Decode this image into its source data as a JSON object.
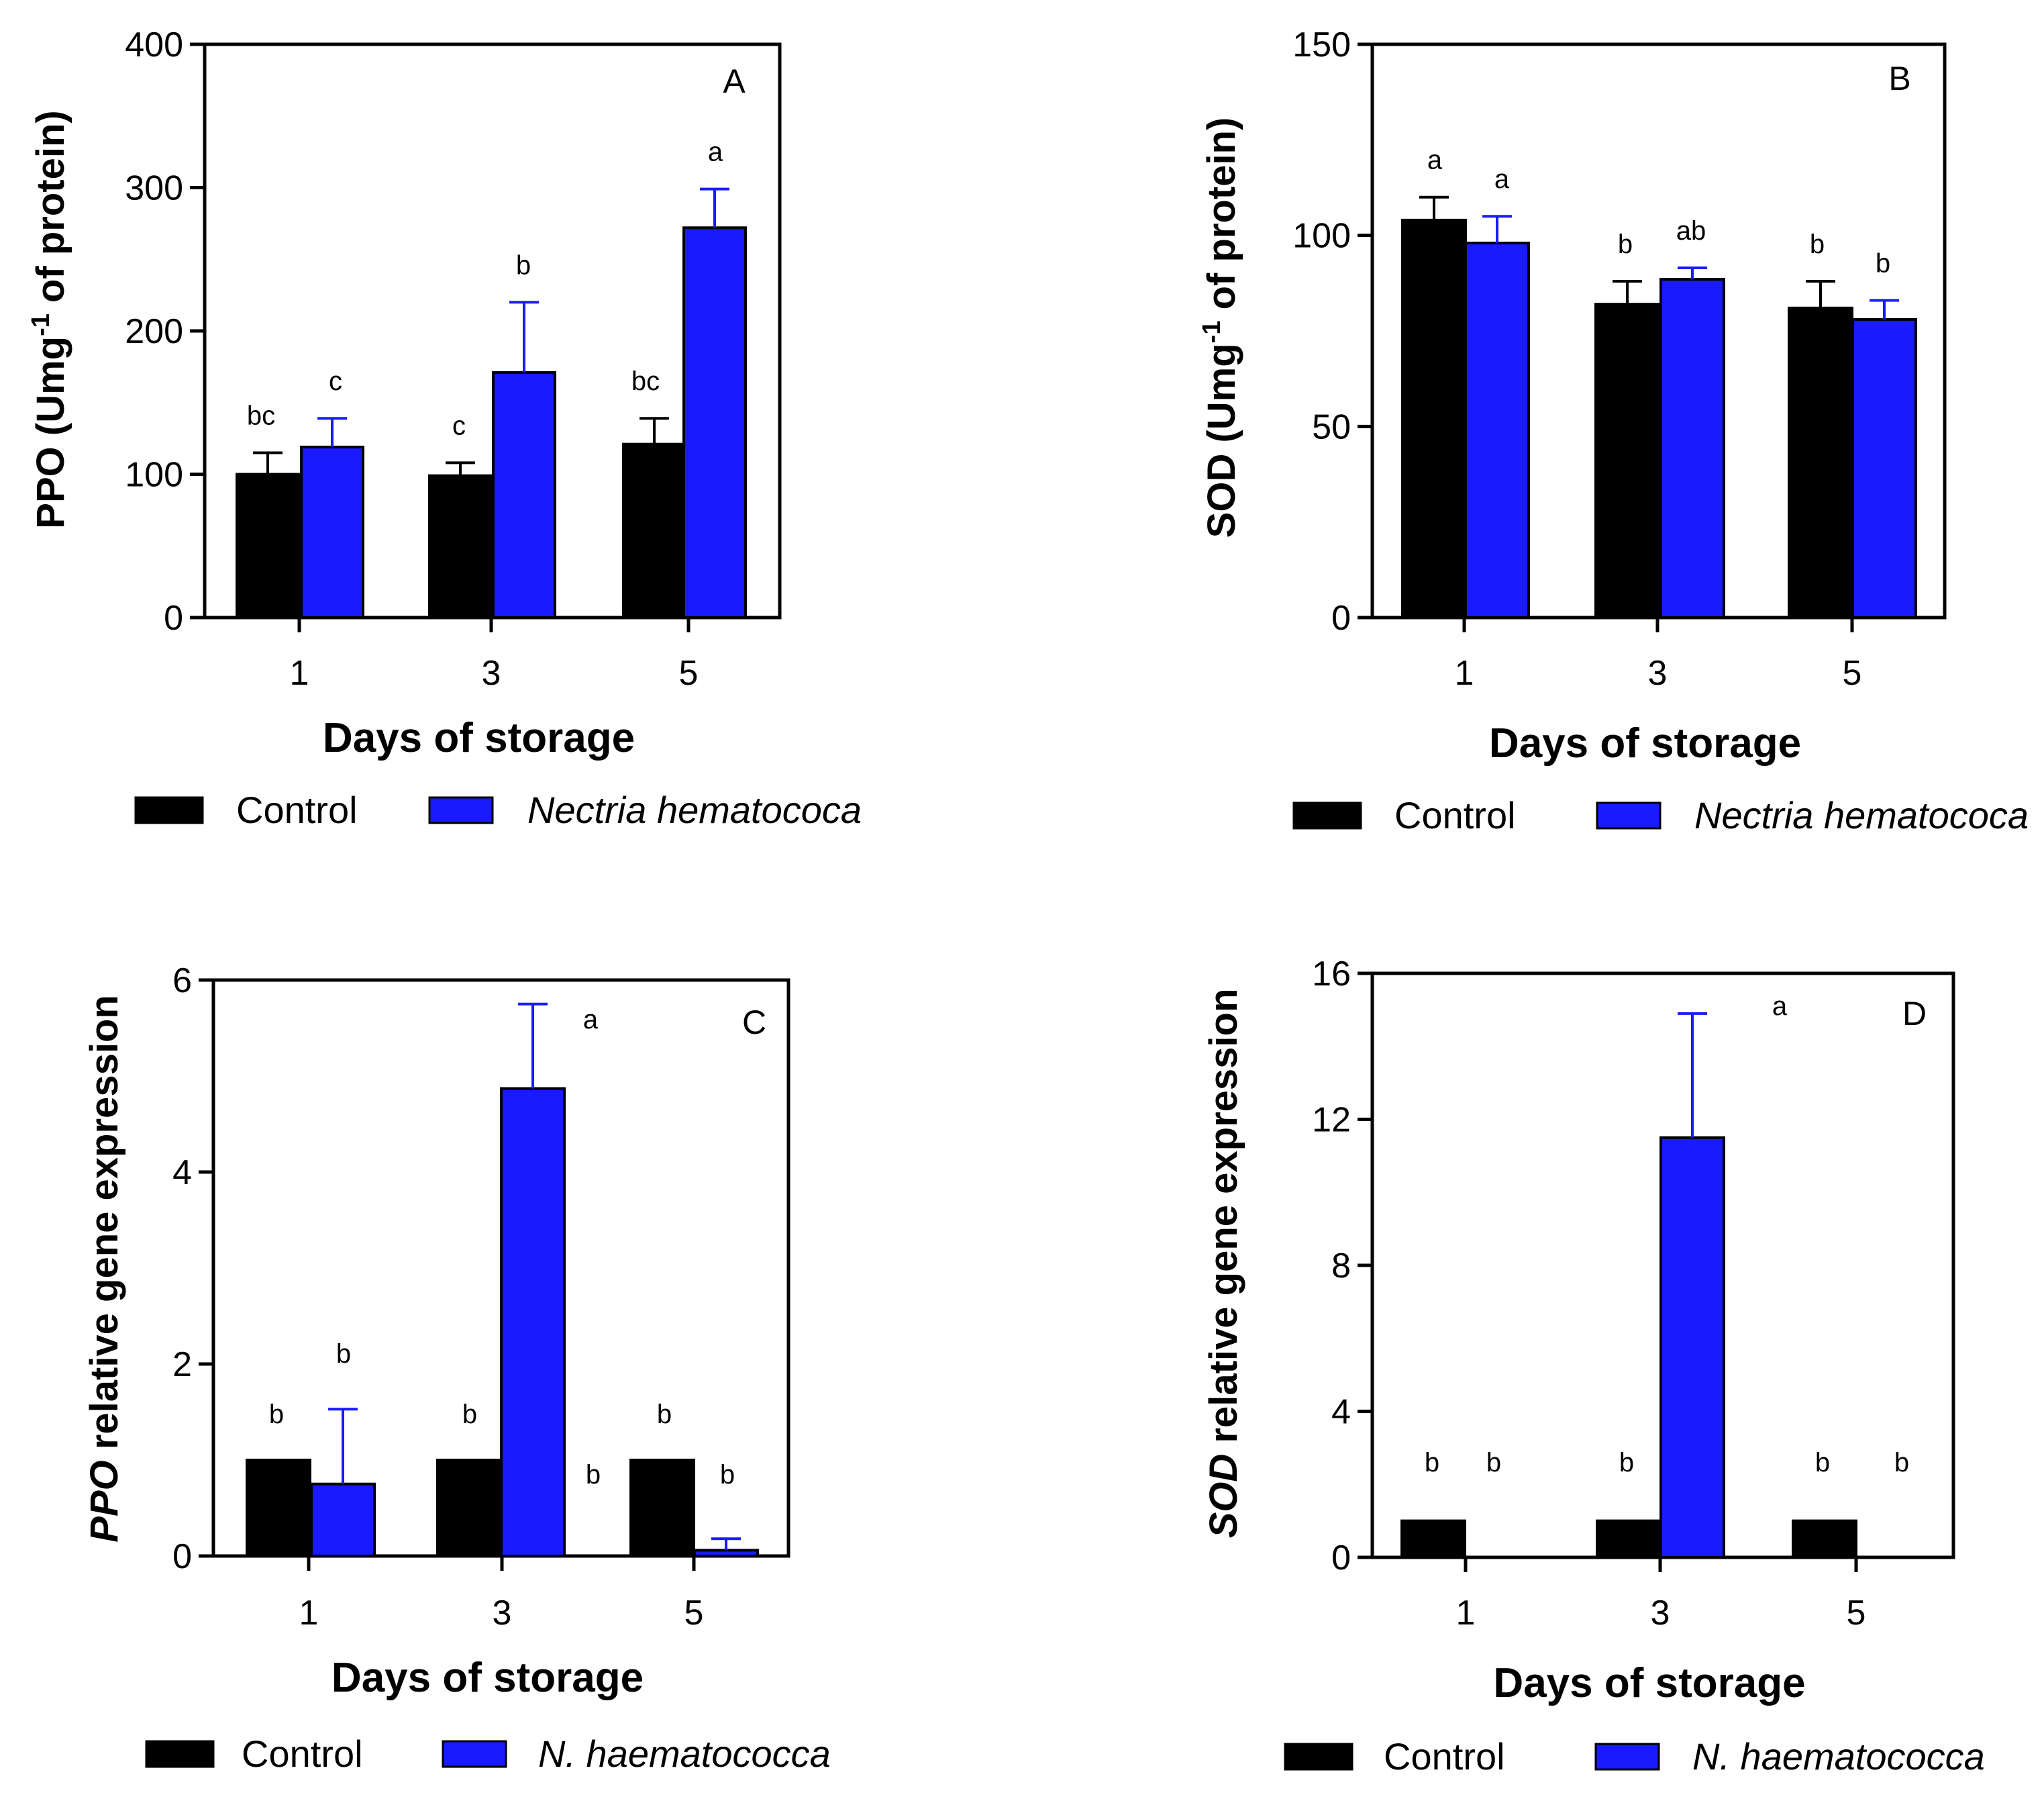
{
  "colors": {
    "control": "#000000",
    "treatment": "#1a1aff"
  },
  "chart_data": [
    {
      "type": "bar",
      "panel_label": "A",
      "ylabel_parts": [
        "PPO (Umg",
        "-1",
        " of protein)"
      ],
      "xlabel": "Days of storage",
      "categories": [
        "1",
        "3",
        "5"
      ],
      "ylim": [
        0,
        400
      ],
      "yticks": [
        "0",
        "100",
        "200",
        "300",
        "400"
      ],
      "series": [
        {
          "name": "Control",
          "values": [
            100,
            99,
            121
          ],
          "errors": [
            15,
            9,
            18
          ],
          "letters": [
            "bc",
            "c",
            "bc"
          ]
        },
        {
          "name": "Nectria hematococa",
          "values": [
            119,
            171,
            272
          ],
          "errors": [
            20,
            49,
            27
          ],
          "letters": [
            "c",
            "b",
            "a"
          ]
        }
      ]
    },
    {
      "type": "bar",
      "panel_label": "B",
      "ylabel_parts": [
        "SOD (Umg",
        "-1",
        " of protein)"
      ],
      "xlabel": "Days of storage",
      "categories": [
        "1",
        "3",
        "5"
      ],
      "ylim": [
        0,
        150
      ],
      "yticks": [
        "0",
        "50",
        "100",
        "150"
      ],
      "series": [
        {
          "name": "Control",
          "values": [
            104,
            82,
            81
          ],
          "errors": [
            6,
            6,
            7
          ],
          "letters": [
            "a",
            "b",
            "b"
          ]
        },
        {
          "name": "Nectria hematococa",
          "values": [
            98,
            88.5,
            78
          ],
          "errors": [
            7,
            3,
            5
          ],
          "letters": [
            "a",
            "ab",
            "b"
          ]
        }
      ]
    },
    {
      "type": "bar",
      "panel_label": "C",
      "ylabel_parts": [
        "PPO",
        " relative gene expression"
      ],
      "xlabel": "Days of storage",
      "categories": [
        "1",
        "3",
        "5"
      ],
      "ylim": [
        0,
        6
      ],
      "yticks": [
        "0",
        "2",
        "4",
        "6"
      ],
      "series": [
        {
          "name": "Control",
          "values": [
            1,
            1,
            1
          ],
          "errors": [
            0,
            0,
            0
          ],
          "letters": [
            "b",
            "b",
            "b"
          ]
        },
        {
          "name": "N. haematococca",
          "values": [
            0.75,
            4.87,
            0.06
          ],
          "errors": [
            0.78,
            0.88,
            0.12
          ],
          "letters": [
            "b",
            "a",
            "b"
          ]
        }
      ],
      "extra_letter": "b"
    },
    {
      "type": "bar",
      "panel_label": "D",
      "ylabel_parts": [
        "SOD",
        " relative gene expression"
      ],
      "xlabel": "Days of storage",
      "categories": [
        "1",
        "3",
        "5"
      ],
      "ylim": [
        0,
        16
      ],
      "yticks": [
        "0",
        "4",
        "8",
        "12",
        "16"
      ],
      "series": [
        {
          "name": "Control",
          "values": [
            1,
            1,
            1
          ],
          "errors": [
            0,
            0,
            0
          ],
          "letters": [
            "b",
            "b",
            "b"
          ]
        },
        {
          "name": "N. haematococca",
          "values": [
            0,
            11.5,
            0
          ],
          "errors": [
            0,
            3.4,
            0
          ],
          "letters": [
            "b",
            "a",
            "b"
          ]
        }
      ]
    }
  ]
}
